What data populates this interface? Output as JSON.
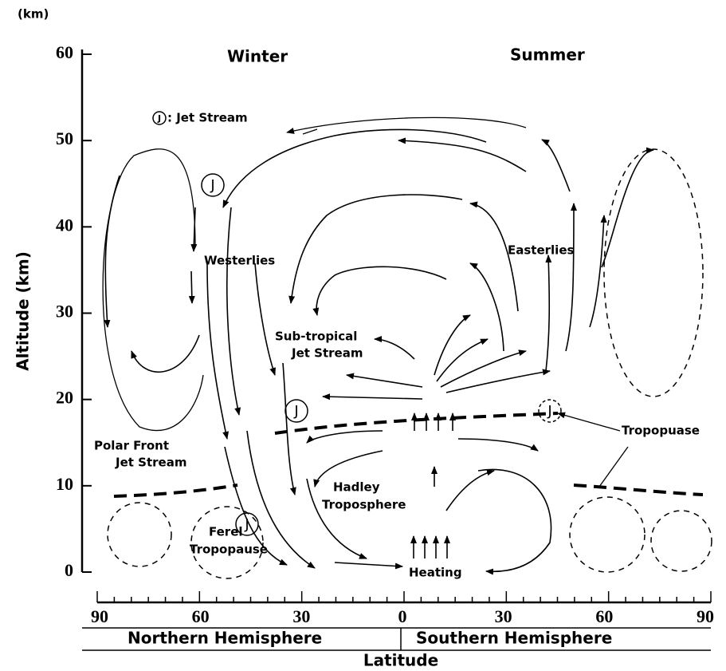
{
  "unit_label": "(km)",
  "y_axis": {
    "title": "Altitude (km)",
    "ticks": [
      "0",
      "10",
      "20",
      "30",
      "40",
      "50",
      "60"
    ]
  },
  "x_axis": {
    "title": "Latitude",
    "ticks": [
      "90",
      "60",
      "30",
      "0",
      "30",
      "60",
      "90"
    ],
    "hemispheres": [
      "Northern Hemisphere",
      "Southern Hemisphere"
    ]
  },
  "seasons": [
    "Winter",
    "Summer"
  ],
  "legend": {
    "symbol": "J",
    "text": ": Jet Stream"
  },
  "labels": {
    "westerlies": "Westerlies",
    "easterlies": "Easterlies",
    "subtropical_jet": [
      "Sub-tropical",
      "Jet Stream"
    ],
    "polar_front_jet": [
      "Polar Front",
      "Jet Stream"
    ],
    "tropopause": "Tropopuase",
    "hadley": [
      "Hadley",
      "Troposphere"
    ],
    "ferel": [
      "Ferel",
      "Tropopause"
    ],
    "heating": "Heating"
  },
  "jet_markers": [
    "J",
    "J",
    "J",
    "J"
  ]
}
